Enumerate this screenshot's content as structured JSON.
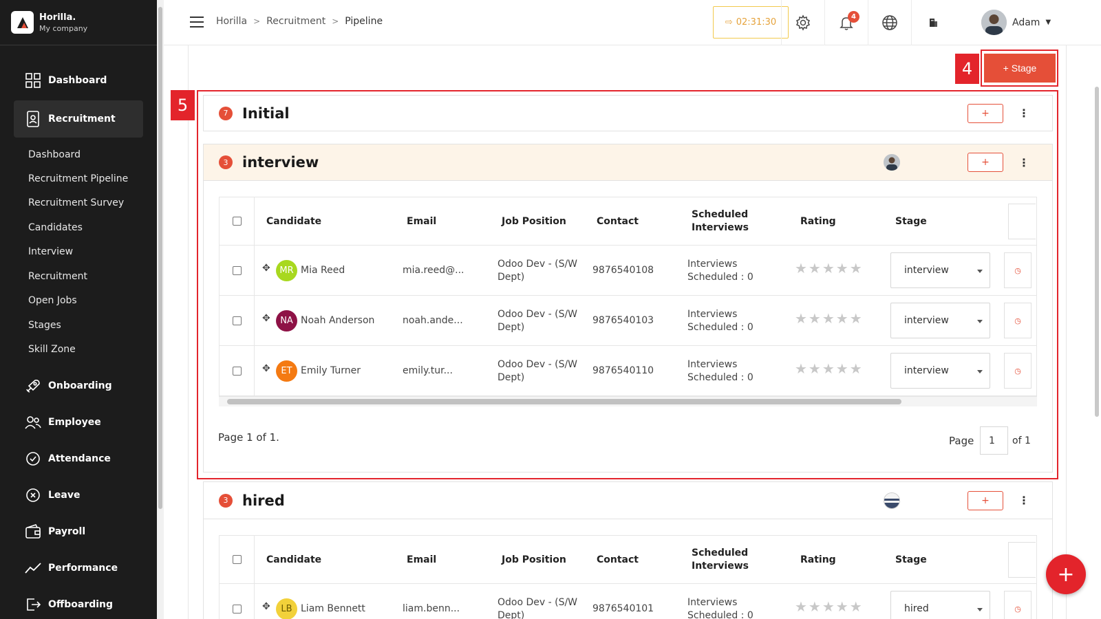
{
  "brand": {
    "name": "Horilla.",
    "company": "My company"
  },
  "sidebar": {
    "main_items": [
      {
        "label": "Dashboard",
        "icon": "dashboard-icon"
      },
      {
        "label": "Recruitment",
        "icon": "recruitment-icon"
      }
    ],
    "sub_items": [
      "Dashboard",
      "Recruitment Pipeline",
      "Recruitment Survey",
      "Candidates",
      "Interview",
      "Recruitment",
      "Open Jobs",
      "Stages",
      "Skill Zone"
    ],
    "lower_items": [
      {
        "label": "Onboarding",
        "icon": "rocket-icon"
      },
      {
        "label": "Employee",
        "icon": "people-icon"
      },
      {
        "label": "Attendance",
        "icon": "check-circle-icon"
      },
      {
        "label": "Leave",
        "icon": "x-circle-icon"
      },
      {
        "label": "Payroll",
        "icon": "wallet-icon"
      },
      {
        "label": "Performance",
        "icon": "trend-icon"
      },
      {
        "label": "Offboarding",
        "icon": "exit-icon"
      }
    ]
  },
  "header": {
    "breadcrumb": [
      "Horilla",
      "Recruitment",
      "Pipeline"
    ],
    "timer": "02:31:30",
    "notification_count": "4",
    "user_name": "Adam"
  },
  "toolbar": {
    "add_stage_label": "+ Stage"
  },
  "markers": {
    "stage_button": "4",
    "pipeline_region": "5"
  },
  "stages": [
    {
      "title": "Initial",
      "count": "7",
      "add_label": "+"
    },
    {
      "title": "interview",
      "count": "3",
      "add_label": "+"
    },
    {
      "title": "hired",
      "count": "3",
      "add_label": "+"
    }
  ],
  "table": {
    "columns": [
      "Candidate",
      "Email",
      "Job Position",
      "Contact",
      "Scheduled Interviews",
      "Rating",
      "Stage"
    ],
    "column_lines": {
      "scheduled": [
        "Scheduled",
        "Interviews"
      ]
    },
    "interview_rows": [
      {
        "initials": "MR",
        "name": "Mia Reed",
        "email": "mia.reed@...",
        "job": [
          "Odoo Dev - (S/W",
          "Dept)"
        ],
        "contact": "9876540108",
        "interviews": [
          "Interviews",
          "Scheduled : 0"
        ],
        "rating": "★★★★★",
        "stage": "interview",
        "color": "#a8d81f"
      },
      {
        "initials": "NA",
        "name": "Noah Anderson",
        "email": "noah.ande...",
        "job": [
          "Odoo Dev - (S/W",
          "Dept)"
        ],
        "contact": "9876540103",
        "interviews": [
          "Interviews",
          "Scheduled : 0"
        ],
        "rating": "★★★★★",
        "stage": "interview",
        "color": "#8e1246"
      },
      {
        "initials": "ET",
        "name": "Emily Turner",
        "email": "emily.tur...",
        "job": [
          "Odoo Dev - (S/W",
          "Dept)"
        ],
        "contact": "9876540110",
        "interviews": [
          "Interviews",
          "Scheduled : 0"
        ],
        "rating": "★★★★★",
        "stage": "interview",
        "color": "#f47a12"
      }
    ],
    "hired_rows": [
      {
        "initials": "LB",
        "name": "Liam Bennett",
        "email": "liam.benn...",
        "job": [
          "Odoo Dev - (S/W",
          "Dept)"
        ],
        "contact": "9876540101",
        "interviews": [
          "Interviews",
          "Scheduled : 0"
        ],
        "rating": "★★★★★",
        "stage": "hired",
        "color": "#f2d13a"
      }
    ]
  },
  "pagination": {
    "summary": "Page 1 of 1.",
    "page_label": "Page",
    "page_value": "1",
    "of_label": "of 1"
  },
  "fab_label": "+",
  "colors": {
    "accent": "#e54f38",
    "annotation": "#e3242b",
    "sidebar_bg": "#1c1c1c"
  }
}
